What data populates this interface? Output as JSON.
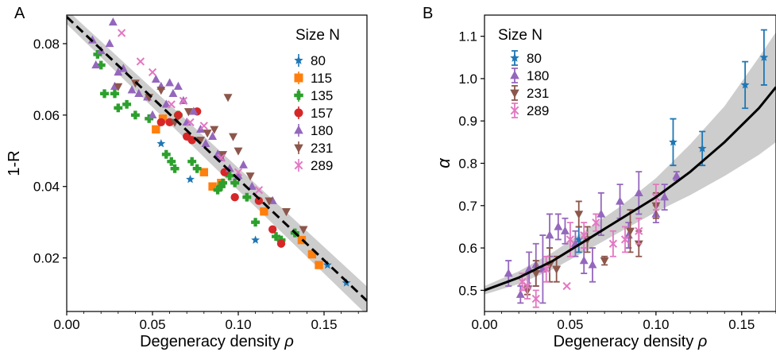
{
  "chart_data": [
    {
      "panel": "A",
      "type": "scatter",
      "xlabel": "Degeneracy density",
      "xlabel_symbol": "ρ",
      "ylabel": "1-R",
      "xlim": [
        0.0,
        0.175
      ],
      "ylim": [
        0.005,
        0.088
      ],
      "xticks": [
        0.0,
        0.05,
        0.1,
        0.15
      ],
      "xtick_labels": [
        "0.00",
        "0.05",
        "0.10",
        "0.15"
      ],
      "yticks": [
        0.02,
        0.04,
        0.06,
        0.08
      ],
      "ytick_labels": [
        "0.02",
        "0.04",
        "0.06",
        "0.08"
      ],
      "legend_title": "Size N",
      "legend_position": "top-right",
      "grid": false,
      "fit_line": {
        "style": "dashed",
        "x": [
          0.0,
          0.175
        ],
        "y": [
          0.0875,
          0.008
        ]
      },
      "band": {
        "x": [
          0.0,
          0.175
        ],
        "upper": [
          0.0895,
          0.012
        ],
        "lower": [
          0.0855,
          0.004
        ]
      },
      "series": [
        {
          "name": "80",
          "color": "#1f77b4",
          "marker": "star",
          "x": [
            0.055,
            0.072,
            0.11,
            0.152,
            0.163
          ],
          "y": [
            0.052,
            0.042,
            0.025,
            0.018,
            0.013
          ]
        },
        {
          "name": "115",
          "color": "#ff7f0e",
          "marker": "square",
          "x": [
            0.052,
            0.056,
            0.08,
            0.085,
            0.09,
            0.115,
            0.137,
            0.143,
            0.147
          ],
          "y": [
            0.056,
            0.059,
            0.044,
            0.04,
            0.041,
            0.033,
            0.025,
            0.021,
            0.018
          ]
        },
        {
          "name": "135",
          "color": "#2ca02c",
          "marker": "plus",
          "x": [
            0.018,
            0.02,
            0.022,
            0.028,
            0.03,
            0.035,
            0.04,
            0.048,
            0.058,
            0.061,
            0.063,
            0.065,
            0.073,
            0.076,
            0.088,
            0.09,
            0.091,
            0.095,
            0.098,
            0.105,
            0.11,
            0.122,
            0.125,
            0.133
          ],
          "y": [
            0.077,
            0.074,
            0.066,
            0.066,
            0.062,
            0.063,
            0.06,
            0.059,
            0.049,
            0.047,
            0.045,
            0.06,
            0.047,
            0.045,
            0.039,
            0.04,
            0.041,
            0.043,
            0.041,
            0.037,
            0.03,
            0.026,
            0.025,
            0.027
          ]
        },
        {
          "name": "157",
          "color": "#d62728",
          "marker": "circle",
          "x": [
            0.055,
            0.06,
            0.065,
            0.07,
            0.073,
            0.076,
            0.092,
            0.098,
            0.112,
            0.12,
            0.125
          ],
          "y": [
            0.058,
            0.058,
            0.06,
            0.054,
            0.053,
            0.061,
            0.044,
            0.037,
            0.036,
            0.028,
            0.024
          ]
        },
        {
          "name": "180",
          "color": "#9467bd",
          "marker": "triangle-up",
          "x": [
            0.015,
            0.017,
            0.02,
            0.025,
            0.027,
            0.03,
            0.033,
            0.038,
            0.042,
            0.047,
            0.05,
            0.052,
            0.055,
            0.058,
            0.06,
            0.062,
            0.065,
            0.068,
            0.07,
            0.074,
            0.078,
            0.081,
            0.085,
            0.088,
            0.09,
            0.095,
            0.1,
            0.103,
            0.108,
            0.12,
            0.028
          ],
          "y": [
            0.081,
            0.074,
            0.078,
            0.08,
            0.086,
            0.072,
            0.073,
            0.067,
            0.066,
            0.065,
            0.06,
            0.07,
            0.068,
            0.063,
            0.069,
            0.066,
            0.068,
            0.064,
            0.058,
            0.061,
            0.056,
            0.052,
            0.054,
            0.049,
            0.048,
            0.045,
            0.043,
            0.046,
            0.04,
            0.036,
            0.068
          ]
        },
        {
          "name": "231",
          "color": "#8c564b",
          "marker": "triangle-down",
          "x": [
            0.03,
            0.04,
            0.048,
            0.055,
            0.063,
            0.071,
            0.078,
            0.082,
            0.086,
            0.091,
            0.094,
            0.097,
            0.1,
            0.107,
            0.118,
            0.128,
            0.138
          ],
          "y": [
            0.068,
            0.069,
            0.065,
            0.067,
            0.058,
            0.061,
            0.053,
            0.055,
            0.056,
            0.049,
            0.065,
            0.054,
            0.05,
            0.043,
            0.036,
            0.033,
            0.028
          ]
        },
        {
          "name": "289",
          "color": "#e377c2",
          "marker": "x",
          "x": [
            0.032,
            0.043,
            0.05,
            0.061,
            0.068,
            0.072,
            0.08,
            0.09,
            0.1,
            0.112
          ],
          "y": [
            0.083,
            0.075,
            0.072,
            0.063,
            0.064,
            0.058,
            0.057,
            0.048,
            0.044,
            0.039
          ]
        }
      ]
    },
    {
      "panel": "B",
      "type": "scatter",
      "xlabel": "Degeneracy density",
      "xlabel_symbol": "ρ",
      "ylabel": "α",
      "xlim": [
        0.0,
        0.17
      ],
      "ylim": [
        0.45,
        1.15
      ],
      "xticks": [
        0.0,
        0.05,
        0.1,
        0.15
      ],
      "xtick_labels": [
        "0.00",
        "0.05",
        "0.10",
        "0.15"
      ],
      "yticks": [
        0.5,
        0.6,
        0.7,
        0.8,
        0.9,
        1.0,
        1.1
      ],
      "ytick_labels": [
        "0.5",
        "0.6",
        "0.7",
        "0.8",
        "0.9",
        "1.0",
        "1.1"
      ],
      "legend_title": "Size N",
      "legend_position": "top-left",
      "grid": false,
      "fit_line": {
        "style": "solid",
        "x": [
          0.0,
          0.02,
          0.04,
          0.06,
          0.08,
          0.1,
          0.12,
          0.14,
          0.16,
          0.17
        ],
        "y": [
          0.5,
          0.53,
          0.57,
          0.62,
          0.67,
          0.72,
          0.78,
          0.85,
          0.93,
          0.98
        ]
      },
      "band": {
        "x": [
          0.0,
          0.02,
          0.04,
          0.06,
          0.08,
          0.1,
          0.12,
          0.14,
          0.16,
          0.17
        ],
        "upper": [
          0.51,
          0.545,
          0.59,
          0.645,
          0.7,
          0.765,
          0.845,
          0.935,
          1.05,
          1.11
        ],
        "lower": [
          0.49,
          0.515,
          0.55,
          0.595,
          0.64,
          0.685,
          0.725,
          0.77,
          0.82,
          0.85
        ]
      },
      "series": [
        {
          "name": "80",
          "color": "#1f77b4",
          "marker": "star",
          "x": [
            0.055,
            0.11,
            0.127,
            0.152,
            0.163
          ],
          "y": [
            0.62,
            0.85,
            0.835,
            0.985,
            1.05
          ],
          "err": [
            0.03,
            0.055,
            0.04,
            0.055,
            0.065
          ]
        },
        {
          "name": "180",
          "color": "#9467bd",
          "marker": "triangle-up",
          "x": [
            0.014,
            0.021,
            0.026,
            0.03,
            0.034,
            0.038,
            0.043,
            0.047,
            0.053,
            0.058,
            0.063,
            0.068,
            0.079,
            0.084,
            0.09,
            0.1,
            0.105,
            0.112
          ],
          "y": [
            0.54,
            0.49,
            0.55,
            0.56,
            0.55,
            0.63,
            0.65,
            0.64,
            0.61,
            0.57,
            0.56,
            0.68,
            0.71,
            0.63,
            0.73,
            0.68,
            0.72,
            0.77
          ],
          "err": [
            0.03,
            0.02,
            0.04,
            0.05,
            0.08,
            0.05,
            0.03,
            0.03,
            0.03,
            0.03,
            0.04,
            0.05,
            0.04,
            0.03,
            0.05,
            0.02,
            0.03,
            0.01
          ]
        },
        {
          "name": "231",
          "color": "#8c564b",
          "marker": "triangle-down",
          "x": [
            0.025,
            0.03,
            0.038,
            0.042,
            0.055,
            0.06,
            0.07,
            0.085,
            0.09,
            0.1
          ],
          "y": [
            0.5,
            0.54,
            0.56,
            0.55,
            0.68,
            0.62,
            0.57,
            0.64,
            0.61,
            0.7
          ],
          "err": [
            0.01,
            0.03,
            0.04,
            0.03,
            0.03,
            0.03,
            0.01,
            0.05,
            0.03,
            0.03
          ]
        },
        {
          "name": "289",
          "color": "#e377c2",
          "marker": "x",
          "x": [
            0.022,
            0.025,
            0.03,
            0.036,
            0.048,
            0.05,
            0.058,
            0.065,
            0.075,
            0.082,
            0.09,
            0.1
          ],
          "y": [
            0.52,
            0.51,
            0.48,
            0.55,
            0.51,
            0.62,
            0.63,
            0.66,
            0.61,
            0.62,
            0.64,
            0.72
          ],
          "err": [
            0.02,
            0.03,
            0.02,
            0.03,
            0.0,
            0.04,
            0.03,
            0.02,
            0.03,
            0.03,
            0.03,
            0.03
          ]
        }
      ]
    }
  ],
  "panel_letters": [
    "A",
    "B"
  ]
}
